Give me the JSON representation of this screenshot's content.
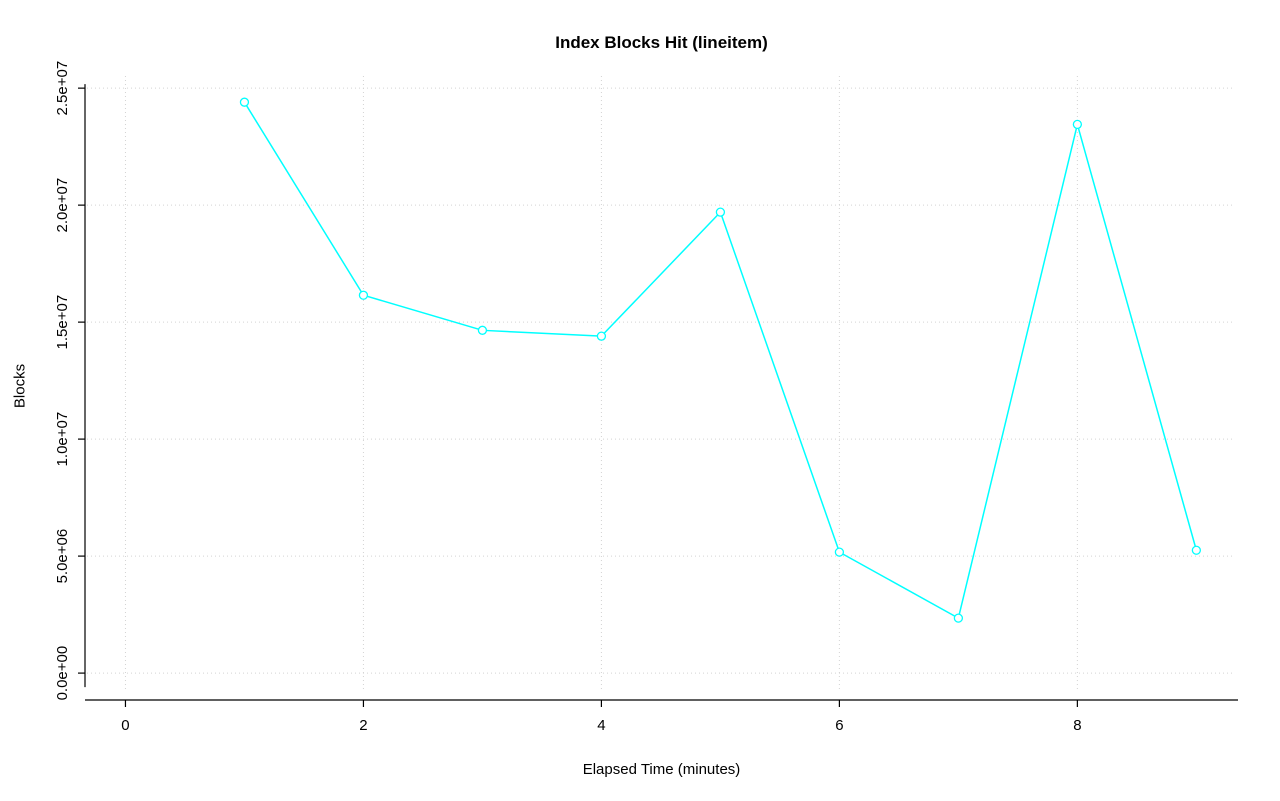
{
  "chart_data": {
    "type": "line",
    "title": "Index Blocks Hit (lineitem)",
    "xlabel": "Elapsed Time (minutes)",
    "ylabel": "Blocks",
    "x": [
      1,
      2,
      3,
      4,
      5,
      6,
      7,
      8,
      9
    ],
    "values": [
      24400000,
      16150000,
      14650000,
      14400000,
      19700000,
      5170000,
      2350000,
      23450000,
      5250000
    ],
    "x_ticks": [
      0,
      2,
      4,
      6,
      8
    ],
    "x_tick_labels": [
      "0",
      "2",
      "4",
      "6",
      "8"
    ],
    "y_ticks": [
      0,
      5000000,
      10000000,
      15000000,
      20000000,
      25000000
    ],
    "y_tick_labels": [
      "0.0e+00",
      "5.0e+06",
      "1.0e+07",
      "1.5e+07",
      "2.0e+07",
      "2.5e+07"
    ],
    "xlim": [
      -0.34,
      9.35
    ],
    "ylim": [
      -1150000,
      25690000
    ],
    "grid": true,
    "grid_style": "dotted",
    "legend": "none",
    "line_color": "#00ffff",
    "point_style": "open-circle",
    "grid_color": "#d3d3d3",
    "axis_color": "#000000",
    "background": "#ffffff"
  }
}
